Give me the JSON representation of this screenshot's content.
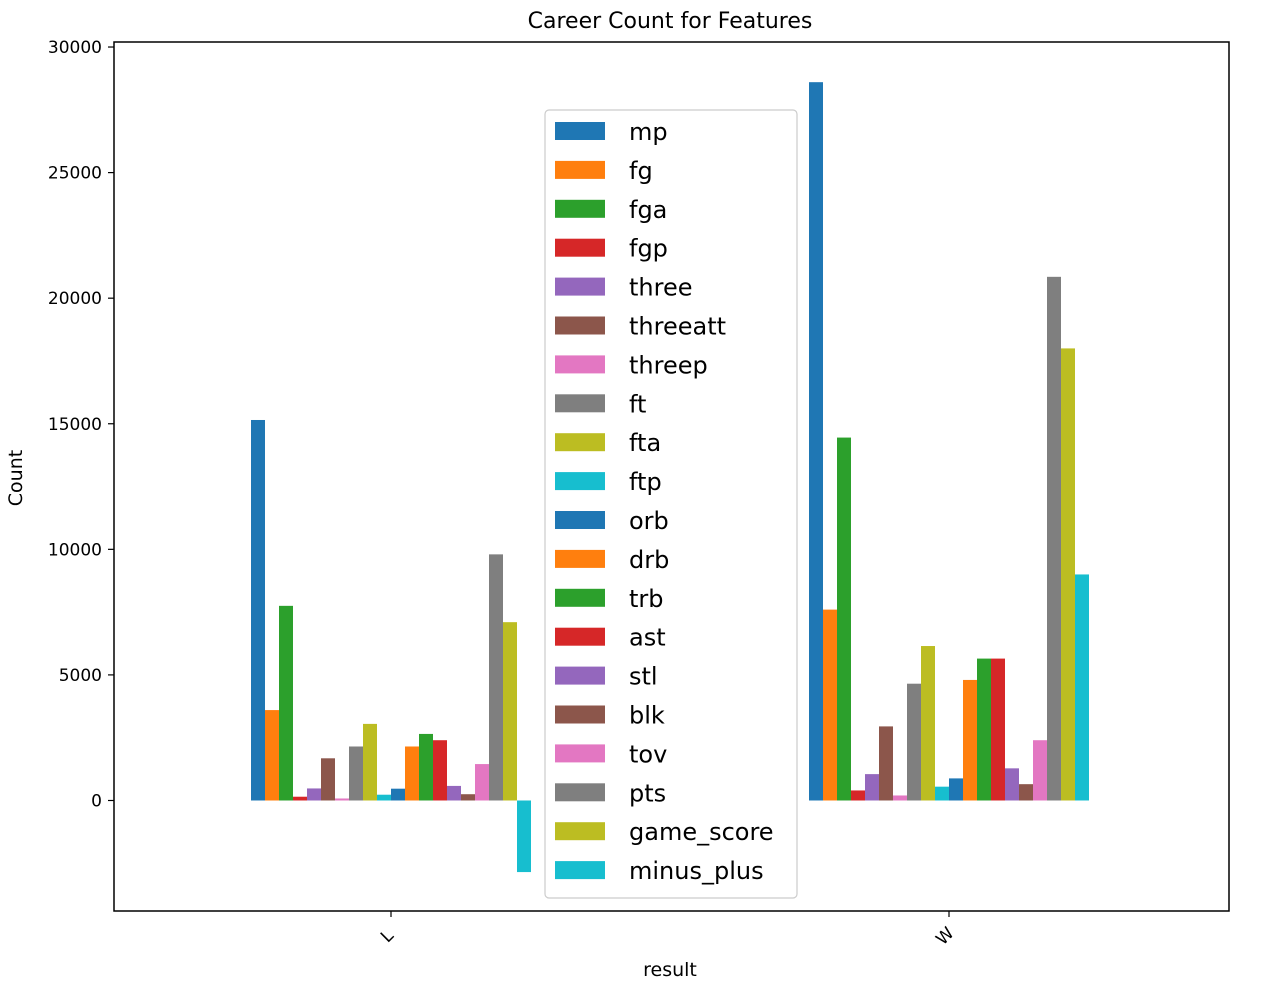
{
  "chart_data": {
    "type": "bar",
    "title": "Career Count for Features",
    "xlabel": "result",
    "ylabel": "Count",
    "categories": [
      "L",
      "W"
    ],
    "ylim": [
      -4400,
      30200
    ],
    "yticks": [
      0,
      5000,
      10000,
      15000,
      20000,
      25000,
      30000
    ],
    "ytick_labels": [
      "0",
      "5000",
      "10000",
      "15000",
      "20000",
      "25000",
      "30000"
    ],
    "grid": false,
    "legend_position": "center",
    "series": [
      {
        "name": "mp",
        "color": "#1f77b4",
        "values": [
          15150,
          28600
        ]
      },
      {
        "name": "fg",
        "color": "#ff7f0e",
        "values": [
          3600,
          7600
        ]
      },
      {
        "name": "fga",
        "color": "#2ca02c",
        "values": [
          7750,
          14450
        ]
      },
      {
        "name": "fgp",
        "color": "#d62728",
        "values": [
          150,
          400
        ]
      },
      {
        "name": "three",
        "color": "#9467bd",
        "values": [
          480,
          1050
        ]
      },
      {
        "name": "threeatt",
        "color": "#8c564b",
        "values": [
          1680,
          2950
        ]
      },
      {
        "name": "threep",
        "color": "#e377c2",
        "values": [
          80,
          200
        ]
      },
      {
        "name": "ft",
        "color": "#7f7f7f",
        "values": [
          2150,
          4650
        ]
      },
      {
        "name": "fta",
        "color": "#bcbd22",
        "values": [
          3050,
          6150
        ]
      },
      {
        "name": "ftp",
        "color": "#17becf",
        "values": [
          230,
          550
        ]
      },
      {
        "name": "orb",
        "color": "#1f77b4",
        "values": [
          470,
          880
        ]
      },
      {
        "name": "drb",
        "color": "#ff7f0e",
        "values": [
          2150,
          4800
        ]
      },
      {
        "name": "trb",
        "color": "#2ca02c",
        "values": [
          2650,
          5650
        ]
      },
      {
        "name": "ast",
        "color": "#d62728",
        "values": [
          2400,
          5650
        ]
      },
      {
        "name": "stl",
        "color": "#9467bd",
        "values": [
          580,
          1280
        ]
      },
      {
        "name": "blk",
        "color": "#8c564b",
        "values": [
          250,
          650
        ]
      },
      {
        "name": "tov",
        "color": "#e377c2",
        "values": [
          1450,
          2400
        ]
      },
      {
        "name": "pts",
        "color": "#7f7f7f",
        "values": [
          9800,
          20850
        ]
      },
      {
        "name": "game_score",
        "color": "#bcbd22",
        "values": [
          7100,
          18000
        ]
      },
      {
        "name": "minus_plus",
        "color": "#17becf",
        "values": [
          -2850,
          9000
        ]
      }
    ]
  }
}
